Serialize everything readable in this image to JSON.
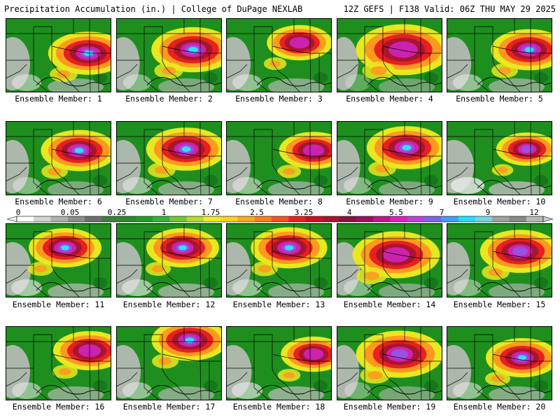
{
  "header": {
    "title_left": "Precipitation Accumulation (in.) | College of DuPage NEXLAB",
    "title_right": "12Z GEFS | F138 Valid: 06Z THU MAY 29 2025"
  },
  "colorbar": {
    "tick_labels": [
      "0",
      "0.05",
      "0.25",
      "1",
      "1.75",
      "2.5",
      "3.25",
      "4",
      "5.5",
      "7",
      "9",
      "12"
    ],
    "colors": [
      "#ffffff",
      "#d4d4d4",
      "#b0b0b0",
      "#8e8e8e",
      "#6f6f6f",
      "#3f7f3f",
      "#2a8a2a",
      "#1fa01f",
      "#33b533",
      "#72c832",
      "#b4dd2a",
      "#eeee22",
      "#ffd21e",
      "#ffaa1e",
      "#ff7f1e",
      "#ff501e",
      "#ee1e1e",
      "#cc1122",
      "#a81530",
      "#8c1040",
      "#a01060",
      "#c01890",
      "#e020c0",
      "#c040e0",
      "#8060f0",
      "#40a0ff",
      "#20e0ff",
      "#70d8e0",
      "#a0a0a0",
      "#888888",
      "#b8b8b8"
    ]
  },
  "panel_colors": {
    "background": "#1e8f1e",
    "gray": "#bdbdbd",
    "light": "#e8e8e8",
    "dark_green": "#13721a",
    "yellow": "#e8e820",
    "orange": "#ff9a1e",
    "red": "#e82020",
    "maroon": "#a8152e",
    "magenta": "#cc22b0",
    "purple": "#9a50e0",
    "cyan": "#30e0ff"
  },
  "members": [
    {
      "label": "Ensemble Member: 1",
      "cx": 118,
      "cy": 50,
      "scale": 1.1,
      "peak": 5,
      "gray": 0.5
    },
    {
      "label": "Ensemble Member: 2",
      "cx": 110,
      "cy": 45,
      "scale": 1.15,
      "peak": 5,
      "gray": 0.4
    },
    {
      "label": "Ensemble Member: 3",
      "cx": 105,
      "cy": 35,
      "scale": 0.9,
      "peak": 3,
      "gray": 0.5
    },
    {
      "label": "Ensemble Member: 4",
      "cx": 95,
      "cy": 45,
      "scale": 1.3,
      "peak": 3,
      "gray": 0.2
    },
    {
      "label": "Ensemble Member: 5",
      "cx": 118,
      "cy": 45,
      "scale": 1.05,
      "peak": 5,
      "gray": 0.5
    },
    {
      "label": "Ensemble Member: 6",
      "cx": 105,
      "cy": 42,
      "scale": 1.05,
      "peak": 5,
      "gray": 0.4
    },
    {
      "label": "Ensemble Member: 7",
      "cx": 100,
      "cy": 40,
      "scale": 1.1,
      "peak": 5,
      "gray": 0.5
    },
    {
      "label": "Ensemble Member: 8",
      "cx": 125,
      "cy": 42,
      "scale": 0.95,
      "peak": 3,
      "gray": 0.5
    },
    {
      "label": "Ensemble Member: 9",
      "cx": 100,
      "cy": 38,
      "scale": 1.1,
      "peak": 5,
      "gray": 0.4
    },
    {
      "label": "Ensemble Member: 10",
      "cx": 115,
      "cy": 40,
      "scale": 0.85,
      "peak": 4,
      "gray": 0.8
    },
    {
      "label": "Ensemble Member: 11",
      "cx": 85,
      "cy": 35,
      "scale": 1.0,
      "peak": 5,
      "gray": 0.6
    },
    {
      "label": "Ensemble Member: 12",
      "cx": 95,
      "cy": 35,
      "scale": 1.0,
      "peak": 5,
      "gray": 0.6
    },
    {
      "label": "Ensemble Member: 13",
      "cx": 90,
      "cy": 35,
      "scale": 1.05,
      "peak": 5,
      "gray": 0.5
    },
    {
      "label": "Ensemble Member: 14",
      "cx": 85,
      "cy": 45,
      "scale": 1.2,
      "peak": 3,
      "gray": 0.4
    },
    {
      "label": "Ensemble Member: 15",
      "cx": 105,
      "cy": 40,
      "scale": 1.1,
      "peak": 4,
      "gray": 0.4
    },
    {
      "label": "Ensemble Member: 16",
      "cx": 120,
      "cy": 35,
      "scale": 1.0,
      "peak": 3,
      "gray": 0.5
    },
    {
      "label": "Ensemble Member: 17",
      "cx": 105,
      "cy": 20,
      "scale": 1.05,
      "peak": 5,
      "gray": 0.5
    },
    {
      "label": "Ensemble Member: 18",
      "cx": 125,
      "cy": 40,
      "scale": 0.9,
      "peak": 3,
      "gray": 0.6
    },
    {
      "label": "Ensemble Member: 19",
      "cx": 90,
      "cy": 40,
      "scale": 1.2,
      "peak": 4,
      "gray": 0.3
    },
    {
      "label": "Ensemble Member: 20",
      "cx": 108,
      "cy": 45,
      "scale": 1.0,
      "peak": 5,
      "gray": 0.5
    }
  ]
}
